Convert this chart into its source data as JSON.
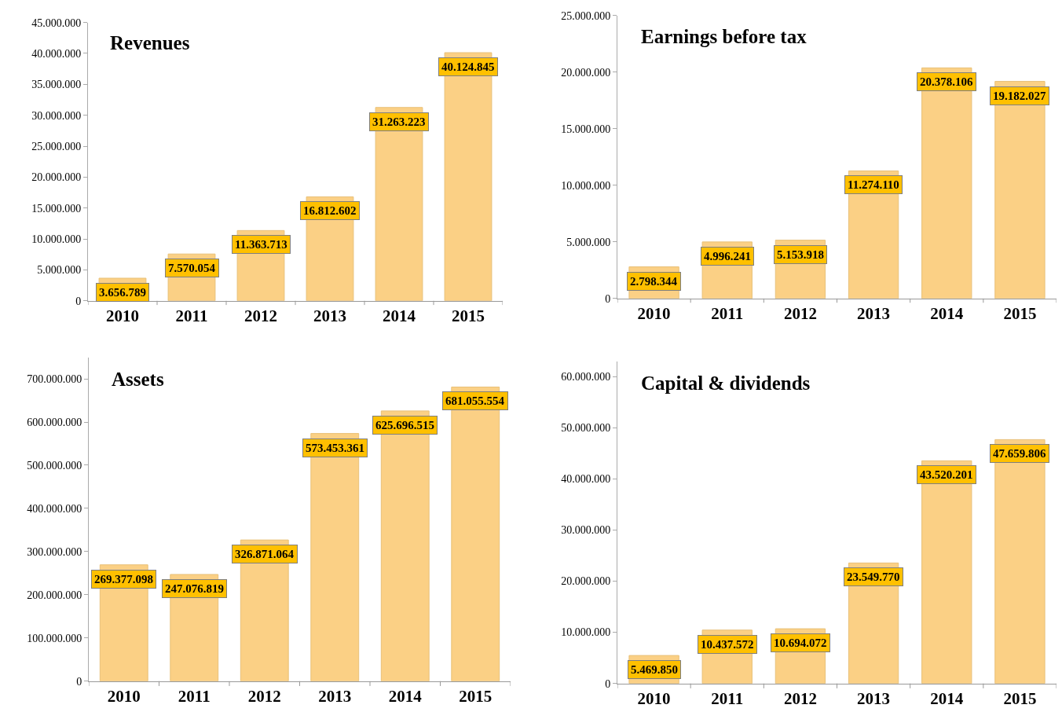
{
  "chart_data": [
    {
      "type": "bar",
      "title": "Revenues",
      "categories": [
        "2010",
        "2011",
        "2012",
        "2013",
        "2014",
        "2015"
      ],
      "values": [
        3656789,
        7570054,
        11363713,
        16812602,
        31263223,
        40124845
      ],
      "value_labels": [
        "3.656.789",
        "7.570.054",
        "11.363.713",
        "16.812.602",
        "31.263.223",
        "40.124.845"
      ],
      "color": "#fbd085",
      "ylim": [
        0,
        45000000
      ],
      "yticks": [
        {
          "value": 0,
          "label": "0"
        },
        {
          "value": 5000000,
          "label": "5.000.000"
        },
        {
          "value": 10000000,
          "label": "10.000.000"
        },
        {
          "value": 15000000,
          "label": "15.000.000"
        },
        {
          "value": 20000000,
          "label": "20.000.000"
        },
        {
          "value": 25000000,
          "label": "25.000.000"
        },
        {
          "value": 30000000,
          "label": "30.000.000"
        },
        {
          "value": 35000000,
          "label": "35.000.000"
        },
        {
          "value": 40000000,
          "label": "40.000.000"
        },
        {
          "value": 45000000,
          "label": "45.000.000"
        }
      ]
    },
    {
      "type": "bar",
      "title": "Earnings before tax",
      "categories": [
        "2010",
        "2011",
        "2012",
        "2013",
        "2014",
        "2015"
      ],
      "values": [
        2798344,
        4996241,
        5153918,
        11274110,
        20378106,
        19182027
      ],
      "value_labels": [
        "2.798.344",
        "4.996.241",
        "5.153.918",
        "11.274.110",
        "20.378.106",
        "19.182.027"
      ],
      "color": "#fbd085",
      "ylim": [
        0,
        25000000
      ],
      "yticks": [
        {
          "value": 0,
          "label": "0"
        },
        {
          "value": 5000000,
          "label": "5.000.000"
        },
        {
          "value": 10000000,
          "label": "10.000.000"
        },
        {
          "value": 15000000,
          "label": "15.000.000"
        },
        {
          "value": 20000000,
          "label": "20.000.000"
        },
        {
          "value": 25000000,
          "label": "25.000.000"
        }
      ]
    },
    {
      "type": "bar",
      "title": "Assets",
      "categories": [
        "2010",
        "2011",
        "2012",
        "2013",
        "2014",
        "2015"
      ],
      "values": [
        269377098,
        247076819,
        326871064,
        573453361,
        625696515,
        681055554
      ],
      "value_labels": [
        "269.377.098",
        "247.076.819",
        "326.871.064",
        "573.453.361",
        "625.696.515",
        "681.055.554"
      ],
      "color": "#fbd085",
      "ylim": [
        0,
        750000000
      ],
      "yticks": [
        {
          "value": 0,
          "label": "0"
        },
        {
          "value": 100000000,
          "label": "100.000.000"
        },
        {
          "value": 200000000,
          "label": "200.000.000"
        },
        {
          "value": 300000000,
          "label": "300.000.000"
        },
        {
          "value": 400000000,
          "label": "400.000.000"
        },
        {
          "value": 500000000,
          "label": "500.000.000"
        },
        {
          "value": 600000000,
          "label": "600.000.000"
        },
        {
          "value": 700000000,
          "label": "700.000.000"
        }
      ]
    },
    {
      "type": "bar",
      "title": "Capital & dividends",
      "categories": [
        "2010",
        "2011",
        "2012",
        "2013",
        "2014",
        "2015"
      ],
      "values": [
        5469850,
        10437572,
        10694072,
        23549770,
        43520201,
        47659806
      ],
      "value_labels": [
        "5.469.850",
        "10.437.572",
        "10.694.072",
        "23.549.770",
        "43.520.201",
        "47.659.806"
      ],
      "color": "#fbd085",
      "ylim": [
        0,
        63000000
      ],
      "yticks": [
        {
          "value": 0,
          "label": "0"
        },
        {
          "value": 10000000,
          "label": "10.000.000"
        },
        {
          "value": 20000000,
          "label": "20.000.000"
        },
        {
          "value": 30000000,
          "label": "30.000.000"
        },
        {
          "value": 40000000,
          "label": "40.000.000"
        },
        {
          "value": 50000000,
          "label": "50.000.000"
        },
        {
          "value": 60000000,
          "label": "60.000.000"
        }
      ]
    }
  ]
}
